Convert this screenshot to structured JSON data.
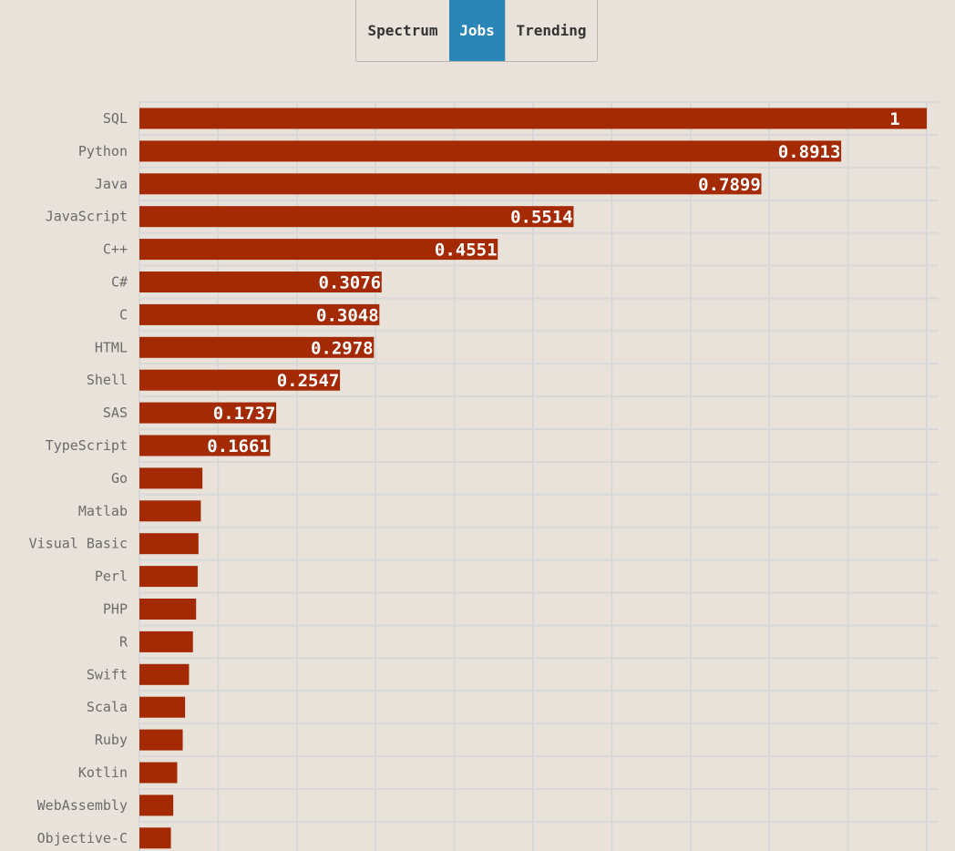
{
  "tabs": [
    {
      "label": "Spectrum",
      "active": false
    },
    {
      "label": "Jobs",
      "active": true
    },
    {
      "label": "Trending",
      "active": false
    }
  ],
  "colors": {
    "bar": "#a42a04",
    "background": "#e8e2da",
    "grid": "#d8d8d8",
    "active_tab": "#2b86b8"
  },
  "chart_data": {
    "type": "bar",
    "orientation": "horizontal",
    "title": "",
    "xlabel": "",
    "ylabel": "",
    "xlim": [
      0,
      1
    ],
    "grid": true,
    "categories": [
      "SQL",
      "Python",
      "Java",
      "JavaScript",
      "C++",
      "C#",
      "C",
      "HTML",
      "Shell",
      "SAS",
      "TypeScript",
      "Go",
      "Matlab",
      "Visual Basic",
      "Perl",
      "PHP",
      "R",
      "Swift",
      "Scala",
      "Ruby",
      "Kotlin",
      "WebAssembly",
      "Objective-C"
    ],
    "values": [
      1,
      0.8913,
      0.7899,
      0.5514,
      0.4551,
      0.3076,
      0.3048,
      0.2978,
      0.2547,
      0.1737,
      0.1661,
      0.08,
      0.078,
      0.075,
      0.074,
      0.072,
      0.068,
      0.063,
      0.058,
      0.055,
      0.048,
      0.043,
      0.04
    ],
    "data_labels": [
      "1",
      "0.8913",
      "0.7899",
      "0.5514",
      "0.4551",
      "0.3076",
      "0.3048",
      "0.2978",
      "0.2547",
      "0.1737",
      "0.1661",
      "",
      "",
      "",
      "",
      "",
      "",
      "",
      "",
      "",
      "",
      "",
      ""
    ]
  }
}
